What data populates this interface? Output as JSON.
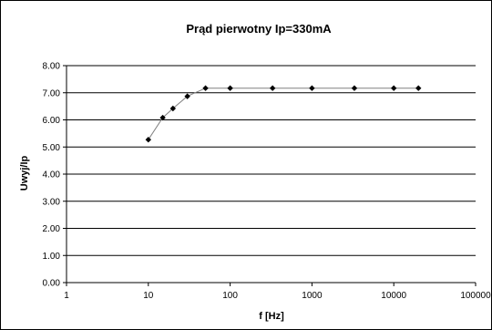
{
  "chart_data": {
    "type": "scatter",
    "title": "Prąd pierwotny Ip=330mA",
    "xlabel": "f [Hz]",
    "ylabel": "Uwyj/Ip",
    "x_scale": "log",
    "xlim": [
      1,
      100000
    ],
    "ylim": [
      0,
      8
    ],
    "x_ticks": [
      1,
      10,
      100,
      1000,
      10000,
      100000
    ],
    "y_ticks": [
      0,
      1,
      2,
      3,
      4,
      5,
      6,
      7,
      8
    ],
    "x_tick_labels": [
      "1",
      "10",
      "100",
      "1000",
      "10000",
      "100000"
    ],
    "y_tick_labels": [
      "0.00",
      "1.00",
      "2.00",
      "3.00",
      "4.00",
      "5.00",
      "6.00",
      "7.00",
      "8.00"
    ],
    "grid": "horizontal",
    "legend": "none",
    "series": [
      {
        "x": [
          10,
          15,
          20,
          30,
          50,
          100,
          330,
          1000,
          3300,
          10000,
          20000
        ],
        "y": [
          5.27,
          6.08,
          6.42,
          6.87,
          7.17,
          7.17,
          7.17,
          7.17,
          7.17,
          7.17,
          7.17
        ],
        "line_color": "#808080",
        "marker_color": "#000000",
        "marker": "diamond"
      }
    ]
  }
}
